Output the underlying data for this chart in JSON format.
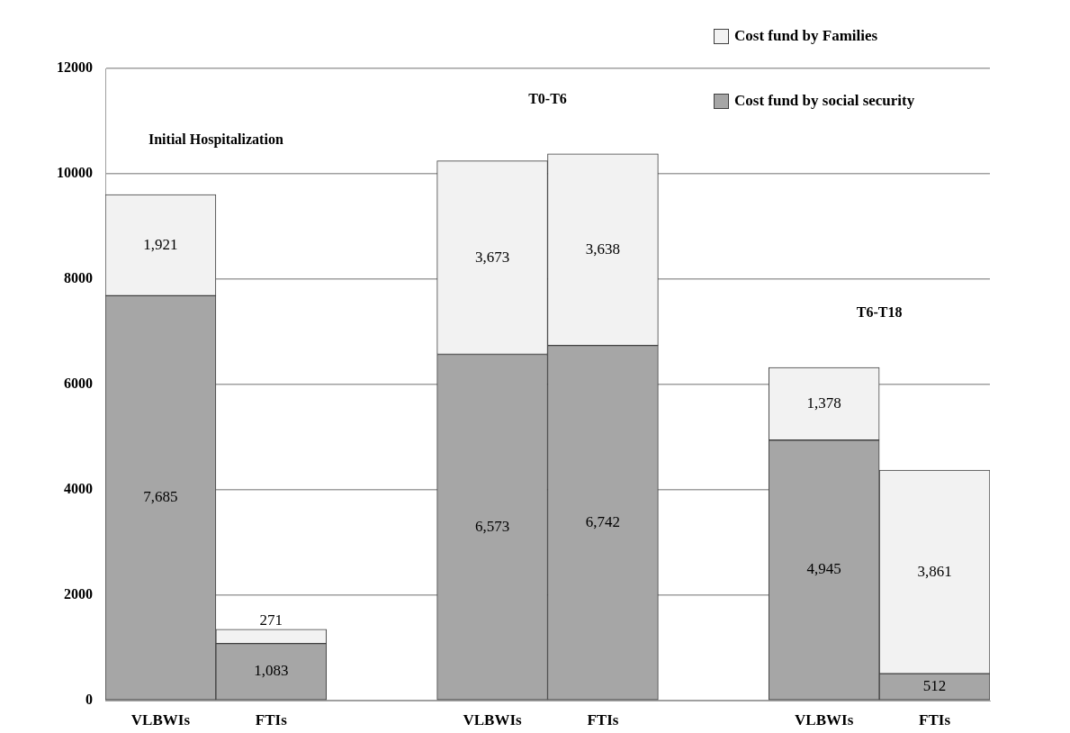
{
  "chart_data": {
    "type": "bar",
    "stacked": true,
    "categories": [
      "VLBWIs",
      "FTIs",
      null,
      "VLBWIs",
      "FTIs",
      null,
      "VLBWIs",
      "FTIs"
    ],
    "series": [
      {
        "name": "Cost fund by social security",
        "color": "#a6a6a6",
        "values": [
          7685,
          1083,
          null,
          6573,
          6742,
          null,
          4945,
          512
        ],
        "value_labels": [
          "7,685",
          "1,083",
          null,
          "6,573",
          "6,742",
          null,
          "4,945",
          "512"
        ]
      },
      {
        "name": "Cost fund by Families",
        "color": "#f2f2f2",
        "values": [
          1921,
          271,
          null,
          3673,
          3638,
          null,
          1378,
          3861
        ],
        "value_labels": [
          "1,921",
          "271",
          null,
          "3,673",
          "3,638",
          null,
          "1,378",
          "3,861"
        ]
      }
    ],
    "ylim": [
      0,
      12000
    ],
    "yticks": [
      0,
      2000,
      4000,
      6000,
      8000,
      10000,
      12000
    ],
    "grid": "y",
    "legend": "top right",
    "annotations": [
      "Initial Hospitalization",
      "T0-T6",
      "T6-T18"
    ]
  }
}
